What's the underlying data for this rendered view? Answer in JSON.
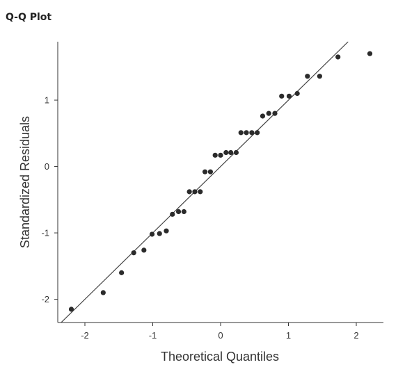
{
  "panel": {
    "title": "Q-Q Plot"
  },
  "chart_data": {
    "type": "scatter",
    "xlabel": "Theoretical Quantiles",
    "ylabel": "Standardized Residuals",
    "xlim": [
      -2.4,
      2.4
    ],
    "ylim": [
      -2.35,
      1.88
    ],
    "xticks": [
      -2,
      -1,
      0,
      1,
      2
    ],
    "yticks": [
      -2,
      -1,
      0,
      1
    ],
    "grid": false,
    "reference_line": {
      "from": [
        -2.4,
        -2.4
      ],
      "to": [
        1.88,
        1.88
      ]
    },
    "colors": {
      "points": "#2b2b2b",
      "line": "#444444",
      "axis": "#333333"
    },
    "points": [
      {
        "x": -2.2,
        "y": -2.15
      },
      {
        "x": -1.73,
        "y": -1.9
      },
      {
        "x": -1.46,
        "y": -1.6
      },
      {
        "x": -1.28,
        "y": -1.3
      },
      {
        "x": -1.13,
        "y": -1.26
      },
      {
        "x": -1.01,
        "y": -1.02
      },
      {
        "x": -0.9,
        "y": -1.01
      },
      {
        "x": -0.8,
        "y": -0.97
      },
      {
        "x": -0.71,
        "y": -0.72
      },
      {
        "x": -0.62,
        "y": -0.68
      },
      {
        "x": -0.54,
        "y": -0.68
      },
      {
        "x": -0.46,
        "y": -0.38
      },
      {
        "x": -0.38,
        "y": -0.38
      },
      {
        "x": -0.3,
        "y": -0.38
      },
      {
        "x": -0.23,
        "y": -0.08
      },
      {
        "x": -0.15,
        "y": -0.08
      },
      {
        "x": -0.08,
        "y": 0.17
      },
      {
        "x": 0.0,
        "y": 0.17
      },
      {
        "x": 0.08,
        "y": 0.21
      },
      {
        "x": 0.15,
        "y": 0.21
      },
      {
        "x": 0.23,
        "y": 0.21
      },
      {
        "x": 0.3,
        "y": 0.51
      },
      {
        "x": 0.38,
        "y": 0.51
      },
      {
        "x": 0.46,
        "y": 0.51
      },
      {
        "x": 0.54,
        "y": 0.51
      },
      {
        "x": 0.62,
        "y": 0.76
      },
      {
        "x": 0.71,
        "y": 0.8
      },
      {
        "x": 0.8,
        "y": 0.8
      },
      {
        "x": 0.9,
        "y": 1.06
      },
      {
        "x": 1.01,
        "y": 1.06
      },
      {
        "x": 1.13,
        "y": 1.1
      },
      {
        "x": 1.28,
        "y": 1.36
      },
      {
        "x": 1.46,
        "y": 1.36
      },
      {
        "x": 1.73,
        "y": 1.65
      },
      {
        "x": 2.2,
        "y": 1.7
      }
    ]
  }
}
